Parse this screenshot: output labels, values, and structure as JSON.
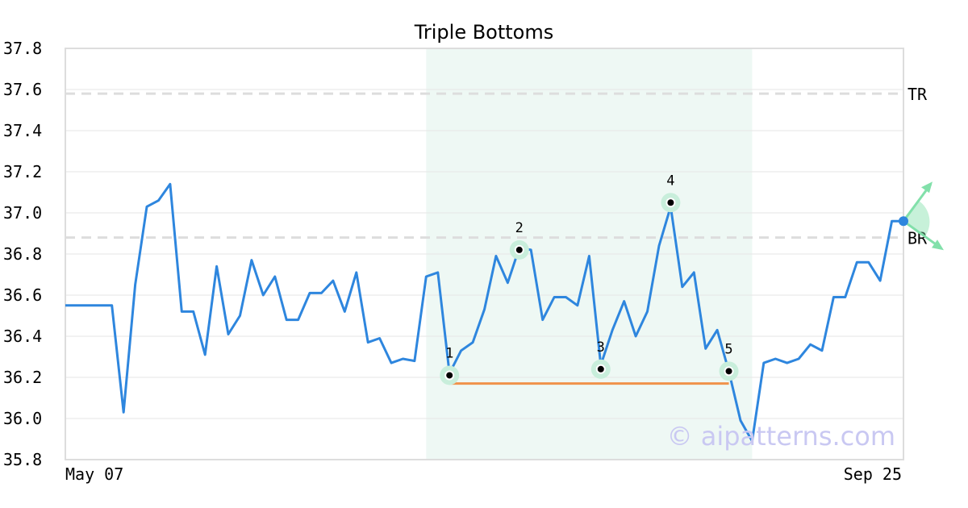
{
  "chart_data": {
    "type": "line",
    "title": "Triple Bottoms",
    "xlabel": "",
    "ylabel": "",
    "ylim": [
      35.8,
      37.8
    ],
    "yticks": [
      "35.8",
      "36.0",
      "36.2",
      "36.4",
      "36.6",
      "36.8",
      "37.0",
      "37.2",
      "37.4",
      "37.6",
      "37.8"
    ],
    "xtick_labels": [
      "May 07",
      "Sep 25"
    ],
    "grid": true,
    "series": [
      {
        "color": "#2e86de",
        "values": [
          36.55,
          36.55,
          36.55,
          36.55,
          36.55,
          36.03,
          36.65,
          37.03,
          37.06,
          37.14,
          36.52,
          36.52,
          36.31,
          36.74,
          36.41,
          36.5,
          36.77,
          36.6,
          36.69,
          36.48,
          36.48,
          36.61,
          36.61,
          36.67,
          36.52,
          36.71,
          36.37,
          36.39,
          36.27,
          36.29,
          36.28,
          36.69,
          36.71,
          36.22,
          36.33,
          36.37,
          36.53,
          36.79,
          36.66,
          36.83,
          36.82,
          36.48,
          36.59,
          36.59,
          36.55,
          36.79,
          36.26,
          36.43,
          36.57,
          36.4,
          36.52,
          36.84,
          37.03,
          36.64,
          36.71,
          36.34,
          36.43,
          36.23,
          35.99,
          35.89,
          36.27,
          36.29,
          36.27,
          36.29,
          36.36,
          36.33,
          36.59,
          36.59,
          36.76,
          36.76,
          36.67,
          36.96,
          36.96
        ]
      }
    ],
    "levels": [
      {
        "label": "TR",
        "value": 37.58
      },
      {
        "label": "BR",
        "value": 36.88
      }
    ],
    "pattern_region": {
      "start_index": 31,
      "end_index": 59,
      "color": "#eef8f4"
    },
    "support_line": {
      "start_index": 33,
      "end_index": 57,
      "value": 36.17,
      "color": "#f0924a"
    },
    "points": [
      {
        "label": "1",
        "index": 33,
        "value": 36.21
      },
      {
        "label": "2",
        "index": 39,
        "value": 36.82
      },
      {
        "label": "3",
        "index": 46,
        "value": 36.24
      },
      {
        "label": "4",
        "index": 52,
        "value": 37.05
      },
      {
        "label": "5",
        "index": 57,
        "value": 36.23
      }
    ],
    "breakout": {
      "index": 72,
      "value": 36.96,
      "color": "#2e86de"
    },
    "direction_color": "#82e0aa",
    "watermark": "© aipatterns.com"
  }
}
